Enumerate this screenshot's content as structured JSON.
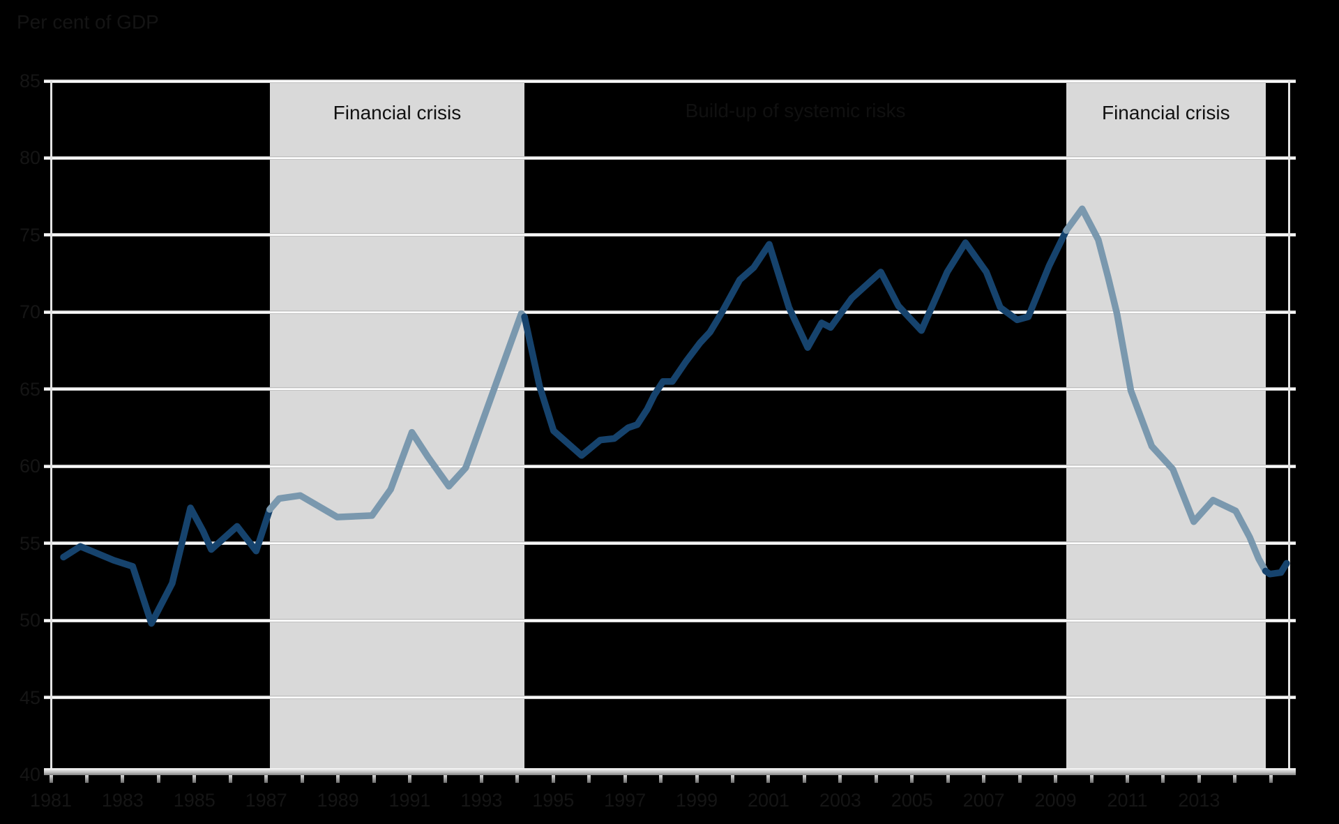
{
  "title": "Per cent of GDP",
  "annotations": {
    "left_band_label": "Financial crisis",
    "middle_label": "Build-up of systemic risks",
    "right_band_label": "Financial crisis"
  },
  "colors": {
    "background": "#000000",
    "band_fill": "#d9d9d9",
    "gridline": "#f5f5f5",
    "axis_bar": "#bfbfbf",
    "tick": "#9a9a9a",
    "line_dark": "#16436D",
    "line_light": "#7A98AE",
    "band_label_text": "#111111",
    "faint_label_text": "#151515"
  },
  "chart_data": {
    "type": "line",
    "title": "Per cent of GDP",
    "xlabel": "",
    "ylabel": "",
    "x_axis": {
      "min": 1981,
      "max": 2015.5,
      "tick_step_years": 1,
      "label_years": [
        1981,
        1983,
        1985,
        1987,
        1989,
        1991,
        1993,
        1995,
        1997,
        1999,
        2001,
        2003,
        2005,
        2007,
        2009,
        2011,
        2013
      ]
    },
    "y_axis": {
      "min": 40,
      "max": 85,
      "ticks": [
        40,
        45,
        50,
        55,
        60,
        65,
        70,
        75,
        80,
        85
      ]
    },
    "grid": "on",
    "legend": "none",
    "shaded_regions": [
      {
        "label": "Financial crisis",
        "from": 1987.1,
        "to": 1994.2
      },
      {
        "label": "Financial crisis",
        "from": 2009.3,
        "to": 2014.85
      }
    ],
    "unshaded_region_label": {
      "label": "Build-up of systemic risks",
      "from": 1994.2,
      "to": 2009.3
    },
    "series": [
      {
        "name": "outside-crisis",
        "color_key": "line_dark",
        "segment": 1,
        "points": [
          [
            1981.35,
            54.1
          ],
          [
            1981.82,
            54.8
          ],
          [
            1982.75,
            53.9
          ],
          [
            1983.28,
            53.5
          ],
          [
            1983.8,
            49.8
          ],
          [
            1984.38,
            52.4
          ],
          [
            1984.89,
            57.3
          ],
          [
            1985.24,
            55.8
          ],
          [
            1985.47,
            54.6
          ],
          [
            1986.19,
            56.1
          ],
          [
            1986.72,
            54.5
          ],
          [
            1987.1,
            57.2
          ]
        ]
      },
      {
        "name": "crisis-1",
        "color_key": "line_light",
        "segment": 2,
        "points": [
          [
            1987.1,
            57.2
          ],
          [
            1987.36,
            57.9
          ],
          [
            1987.95,
            58.1
          ],
          [
            1988.98,
            56.7
          ],
          [
            1989.95,
            56.8
          ],
          [
            1990.47,
            58.5
          ],
          [
            1991.06,
            62.2
          ],
          [
            1991.51,
            60.6
          ],
          [
            1992.09,
            58.7
          ],
          [
            1992.56,
            59.9
          ],
          [
            1993.35,
            65.0
          ],
          [
            1994.11,
            69.9
          ],
          [
            1994.2,
            69.7
          ]
        ]
      },
      {
        "name": "build-up",
        "color_key": "line_dark",
        "segment": 3,
        "points": [
          [
            1994.2,
            69.7
          ],
          [
            1994.62,
            65.2
          ],
          [
            1995.01,
            62.3
          ],
          [
            1995.79,
            60.7
          ],
          [
            1996.31,
            61.7
          ],
          [
            1996.7,
            61.8
          ],
          [
            1997.09,
            62.5
          ],
          [
            1997.34,
            62.7
          ],
          [
            1997.62,
            63.7
          ],
          [
            1997.81,
            64.6
          ],
          [
            1998.06,
            65.5
          ],
          [
            1998.32,
            65.5
          ],
          [
            1998.7,
            66.8
          ],
          [
            1999.09,
            68.0
          ],
          [
            1999.37,
            68.7
          ],
          [
            1999.68,
            69.9
          ],
          [
            2000.2,
            72.1
          ],
          [
            2000.59,
            72.9
          ],
          [
            2001.02,
            74.4
          ],
          [
            2001.57,
            70.3
          ],
          [
            2002.09,
            67.7
          ],
          [
            2002.48,
            69.3
          ],
          [
            2002.73,
            69.0
          ],
          [
            2003.32,
            70.9
          ],
          [
            2004.13,
            72.6
          ],
          [
            2004.62,
            70.4
          ],
          [
            2005.26,
            68.8
          ],
          [
            2005.98,
            72.6
          ],
          [
            2006.49,
            74.5
          ],
          [
            2007.07,
            72.6
          ],
          [
            2007.46,
            70.3
          ],
          [
            2007.93,
            69.5
          ],
          [
            2008.24,
            69.7
          ],
          [
            2008.82,
            73.0
          ],
          [
            2009.3,
            75.3
          ]
        ]
      },
      {
        "name": "crisis-2",
        "color_key": "line_light",
        "segment": 4,
        "points": [
          [
            2009.3,
            75.3
          ],
          [
            2009.74,
            76.7
          ],
          [
            2010.19,
            74.7
          ],
          [
            2010.46,
            72.3
          ],
          [
            2010.71,
            69.9
          ],
          [
            2011.1,
            64.9
          ],
          [
            2011.68,
            61.3
          ],
          [
            2012.27,
            59.8
          ],
          [
            2012.85,
            56.4
          ],
          [
            2013.39,
            57.8
          ],
          [
            2014.02,
            57.1
          ],
          [
            2014.41,
            55.4
          ],
          [
            2014.66,
            54.0
          ],
          [
            2014.85,
            53.2
          ]
        ]
      },
      {
        "name": "post-crisis",
        "color_key": "line_dark",
        "segment": 5,
        "points": [
          [
            2014.85,
            53.2
          ],
          [
            2014.97,
            53.0
          ],
          [
            2015.28,
            53.1
          ],
          [
            2015.44,
            53.7
          ]
        ]
      }
    ]
  }
}
